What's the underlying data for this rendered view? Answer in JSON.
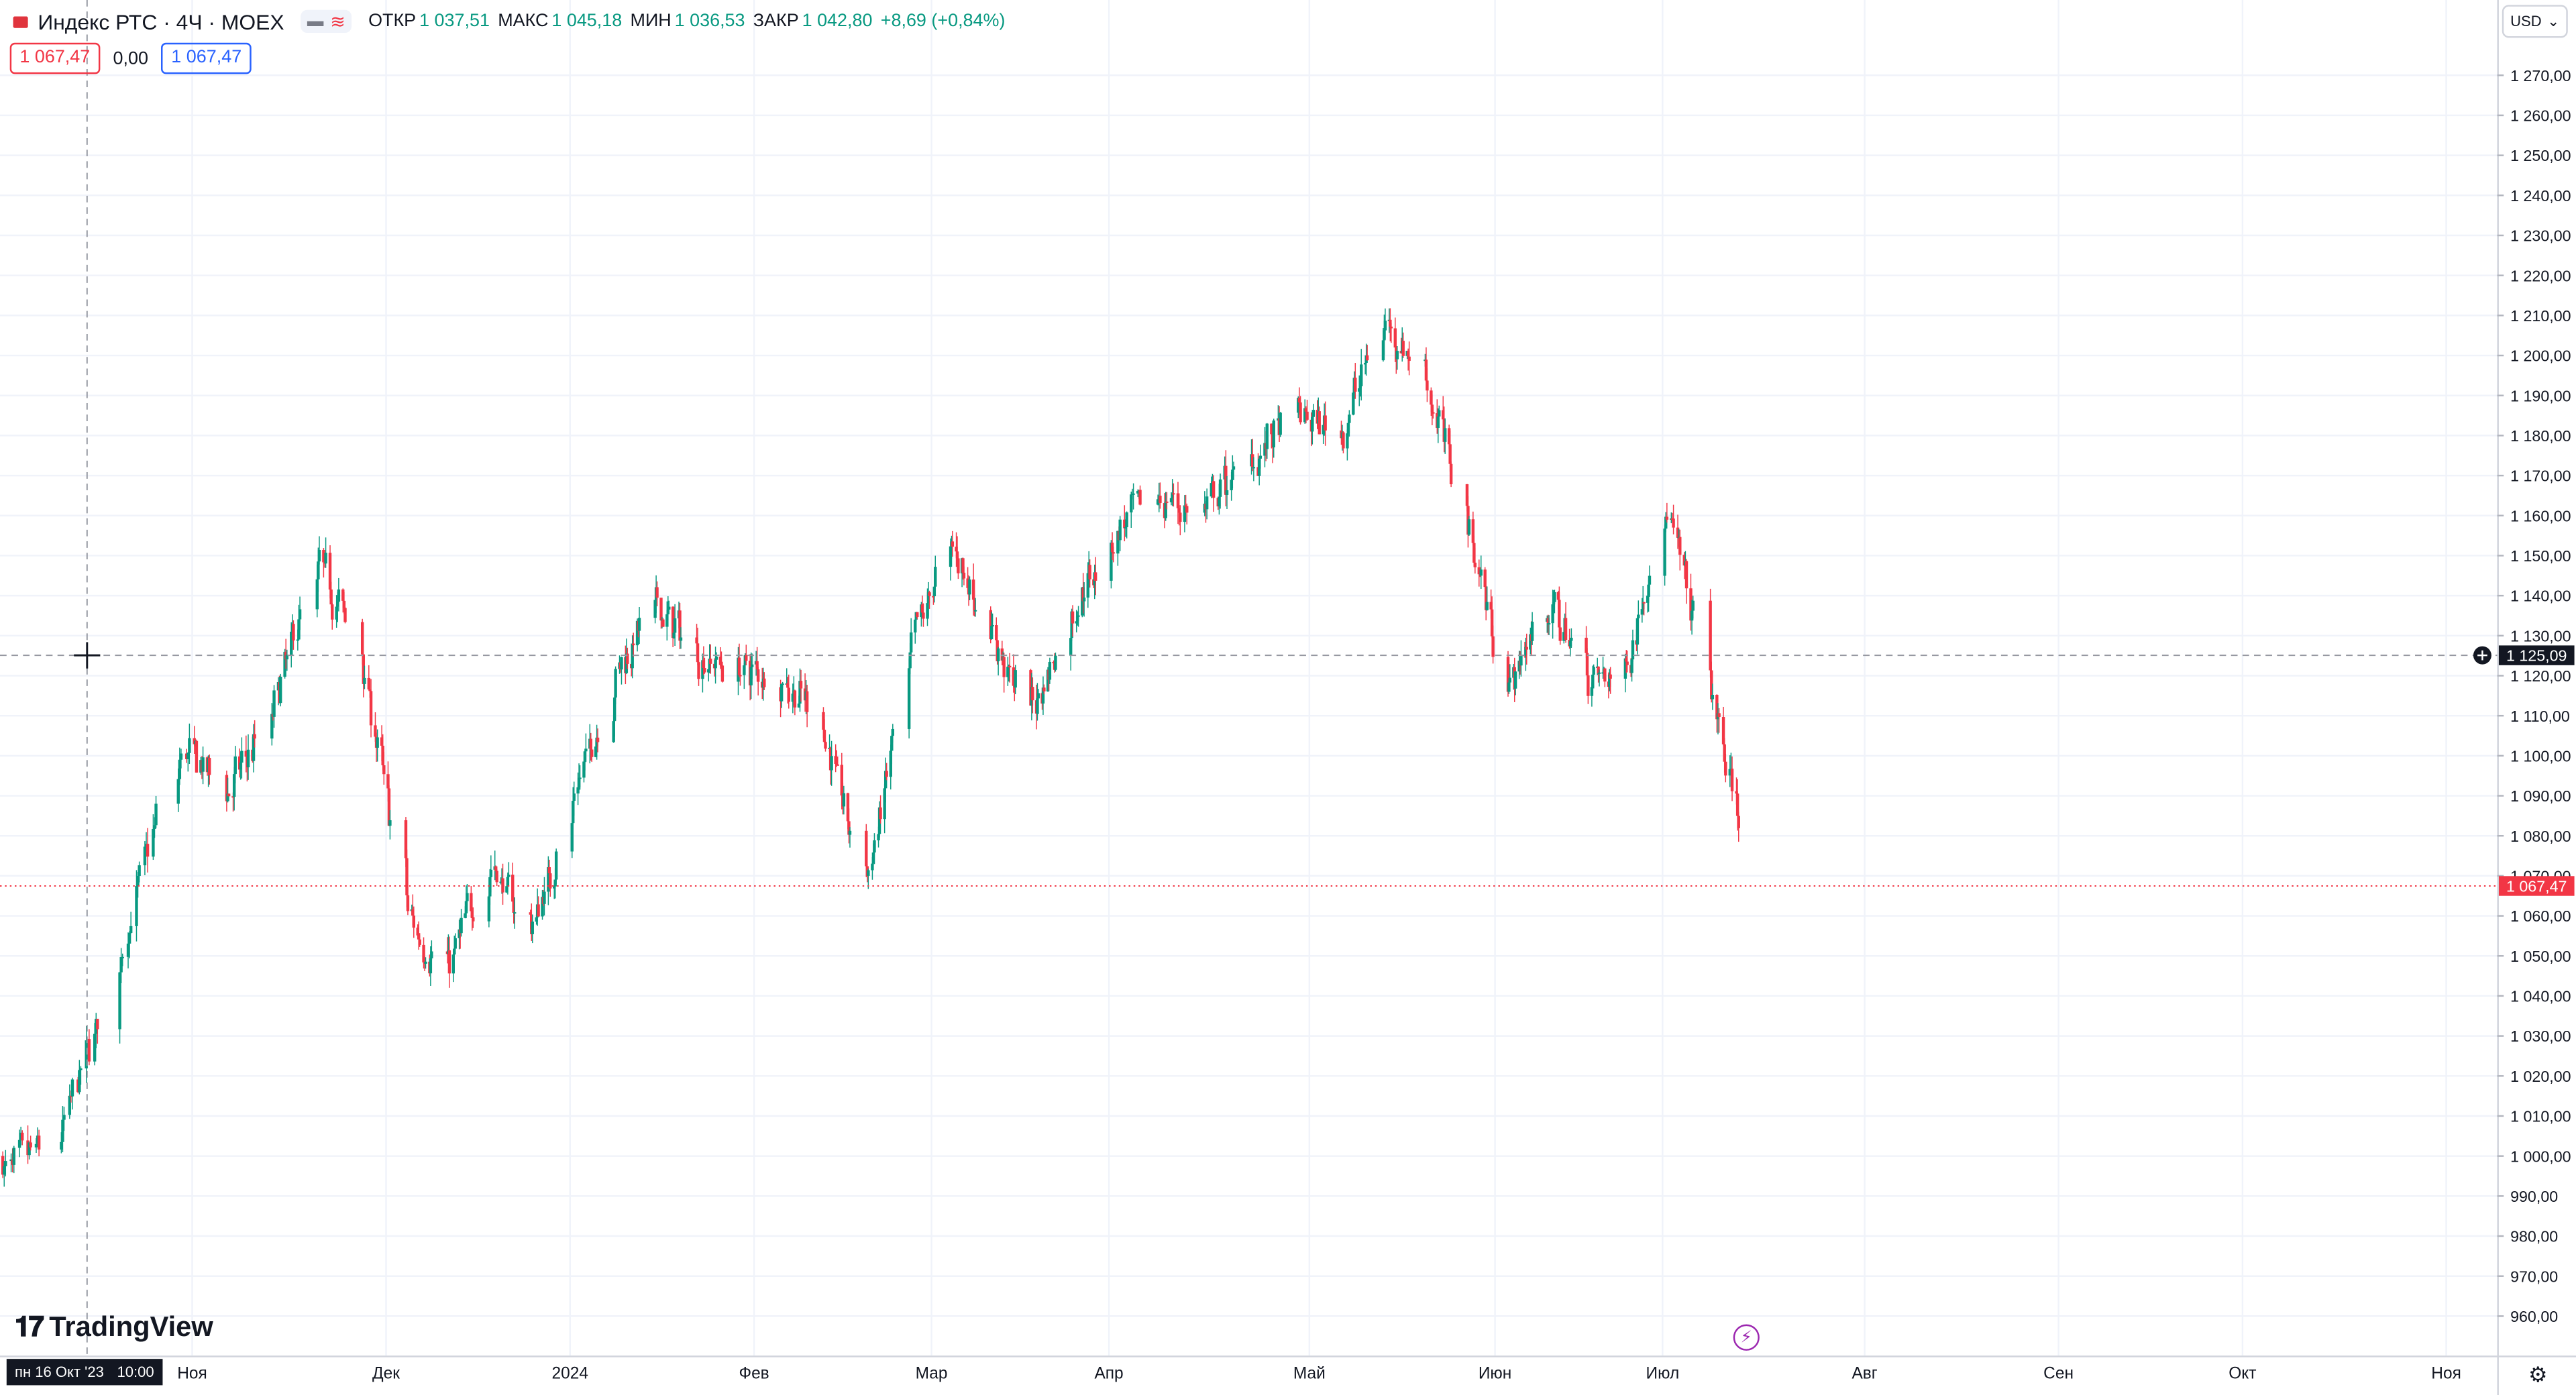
{
  "header": {
    "symbol": "Индекс РТС · 4Ч · MOEX",
    "open_label": "ОТКР",
    "open_value": "1 037,51",
    "high_label": "МАКС",
    "high_value": "1 045,18",
    "low_label": "МИН",
    "low_value": "1 036,53",
    "close_label": "ЗАКР",
    "close_value": "1 042,80",
    "change": "+8,69 (+0,84%)"
  },
  "toggle_icons": [
    "minus-icon",
    "wave-icon"
  ],
  "price_row": {
    "sell": "1 067,47",
    "spread": "0,00",
    "buy": "1 067,47"
  },
  "currency": "USD",
  "brand": "TradingView",
  "cursor_time": {
    "date": "пн 16 Окт '23",
    "time": "10:00"
  },
  "cursor_price": "1 125,09",
  "last_price": "1 067,47",
  "colors": {
    "up": "#089981",
    "down": "#f23645",
    "crosshair": "#9598a1"
  },
  "chart_data": {
    "type": "candlestick",
    "y_axis": {
      "range": [
        955,
        1275
      ],
      "ticks": [
        "960,00",
        "970,00",
        "980,00",
        "990,00",
        "1 000,00",
        "1 010,00",
        "1 020,00",
        "1 030,00",
        "1 040,00",
        "1 050,00",
        "1 060,00",
        "1 070,00",
        "1 080,00",
        "1 090,00",
        "1 100,00",
        "1 110,00",
        "1 120,00",
        "1 130,00",
        "1 140,00",
        "1 150,00",
        "1 160,00",
        "1 170,00",
        "1 180,00",
        "1 190,00",
        "1 200,00",
        "1 210,00",
        "1 220,00",
        "1 230,00",
        "1 240,00",
        "1 250,00",
        "1 260,00",
        "1 270,00"
      ]
    },
    "x_axis": {
      "labels": [
        "Ноя",
        "Дек",
        "2024",
        "Фев",
        "Мар",
        "Апр",
        "Май",
        "Июн",
        "Июл",
        "Авг",
        "Сен",
        "Окт",
        "Ноя"
      ]
    },
    "series": [
      {
        "x": "2023-10-09",
        "close": 995
      },
      {
        "x": "2023-10-16",
        "close": 1005
      },
      {
        "x": "2023-10-23",
        "close": 1050
      },
      {
        "x": "2023-10-30",
        "close": 1103
      },
      {
        "x": "2023-11-06",
        "close": 1090
      },
      {
        "x": "2023-11-13",
        "close": 1110
      },
      {
        "x": "2023-11-20",
        "close": 1150
      },
      {
        "x": "2023-11-27",
        "close": 1125
      },
      {
        "x": "2023-12-04",
        "close": 1060
      },
      {
        "x": "2023-12-11",
        "close": 1045
      },
      {
        "x": "2023-12-18",
        "close": 1075
      },
      {
        "x": "2023-12-25",
        "close": 1055
      },
      {
        "x": "2024-01-08",
        "close": 1120
      },
      {
        "x": "2024-01-15",
        "close": 1138
      },
      {
        "x": "2024-01-22",
        "close": 1125
      },
      {
        "x": "2024-01-29",
        "close": 1122
      },
      {
        "x": "2024-02-05",
        "close": 1120
      },
      {
        "x": "2024-02-12",
        "close": 1108
      },
      {
        "x": "2024-02-19",
        "close": 1065
      },
      {
        "x": "2024-02-26",
        "close": 1125
      },
      {
        "x": "2024-03-04",
        "close": 1155
      },
      {
        "x": "2024-03-11",
        "close": 1130
      },
      {
        "x": "2024-03-18",
        "close": 1110
      },
      {
        "x": "2024-03-25",
        "close": 1135
      },
      {
        "x": "2024-04-01",
        "close": 1155
      },
      {
        "x": "2024-04-08",
        "close": 1165
      },
      {
        "x": "2024-04-15",
        "close": 1160
      },
      {
        "x": "2024-04-22",
        "close": 1175
      },
      {
        "x": "2024-04-29",
        "close": 1185
      },
      {
        "x": "2024-05-06",
        "close": 1180
      },
      {
        "x": "2024-05-13",
        "close": 1210
      },
      {
        "x": "2024-05-20",
        "close": 1195
      },
      {
        "x": "2024-05-27",
        "close": 1160
      },
      {
        "x": "2024-06-03",
        "close": 1115
      },
      {
        "x": "2024-06-10",
        "close": 1140
      },
      {
        "x": "2024-06-17",
        "close": 1120
      },
      {
        "x": "2024-06-24",
        "close": 1120
      },
      {
        "x": "2024-07-01",
        "close": 1165
      },
      {
        "x": "2024-07-08",
        "close": 1115
      },
      {
        "x": "2024-07-15",
        "close": 1067.47
      }
    ]
  }
}
